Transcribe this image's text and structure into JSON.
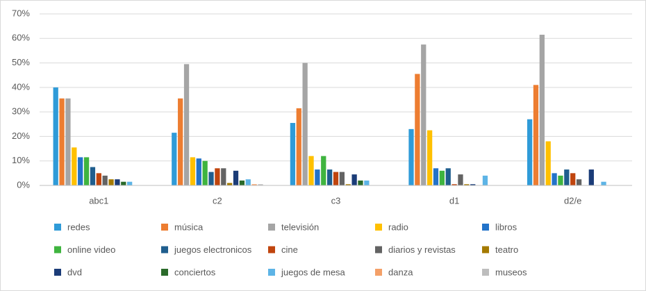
{
  "chart_data": {
    "type": "bar",
    "categories": [
      "abc1",
      "c2",
      "c3",
      "d1",
      "d2/e"
    ],
    "series": [
      {
        "name": "redes",
        "color": "#2F9BD8",
        "values": [
          40,
          21.5,
          25.5,
          23,
          27
        ]
      },
      {
        "name": "música",
        "color": "#ED7D31",
        "values": [
          35.5,
          35.5,
          31.5,
          45.5,
          41
        ]
      },
      {
        "name": "televisión",
        "color": "#A5A5A5",
        "values": [
          35.5,
          49.5,
          50,
          57.5,
          61.5
        ]
      },
      {
        "name": "radio",
        "color": "#FFC000",
        "values": [
          15.5,
          11.5,
          12,
          22.5,
          18
        ]
      },
      {
        "name": "libros",
        "color": "#2373C9",
        "values": [
          11.5,
          11,
          6.5,
          7,
          5
        ]
      },
      {
        "name": "online video",
        "color": "#3FB43F",
        "values": [
          11.5,
          10,
          12,
          6,
          4
        ]
      },
      {
        "name": "juegos electronicos",
        "color": "#1F5E8E",
        "values": [
          7.5,
          5.5,
          6.5,
          7,
          6.5
        ]
      },
      {
        "name": "cine",
        "color": "#C0450E",
        "values": [
          5,
          7,
          5.5,
          0.5,
          5
        ]
      },
      {
        "name": "diarios y revistas",
        "color": "#636363",
        "values": [
          4,
          7,
          5.5,
          4.5,
          2.5
        ]
      },
      {
        "name": "teatro",
        "color": "#A47A00",
        "values": [
          2.5,
          1,
          0.5,
          0.5,
          0
        ]
      },
      {
        "name": "dvd",
        "color": "#1B3C78",
        "values": [
          2.5,
          6,
          4.5,
          0.5,
          6.5
        ]
      },
      {
        "name": "conciertos",
        "color": "#2A6A2A",
        "values": [
          1.5,
          2,
          2,
          0,
          0
        ]
      },
      {
        "name": "juegos de mesa",
        "color": "#5DB4E6",
        "values": [
          1.5,
          2.5,
          2,
          4,
          1.5
        ]
      },
      {
        "name": "danza",
        "color": "#F4A068",
        "values": [
          0,
          0.5,
          0,
          0,
          0
        ]
      },
      {
        "name": "museos",
        "color": "#BDBDBD",
        "values": [
          0,
          0.5,
          0,
          0,
          0
        ]
      }
    ],
    "ylim": [
      0,
      70
    ],
    "yticks": [
      {
        "value": 0,
        "label": "0%"
      },
      {
        "value": 10,
        "label": "10%"
      },
      {
        "value": 20,
        "label": "20%"
      },
      {
        "value": 30,
        "label": "30%"
      },
      {
        "value": 40,
        "label": "40%"
      },
      {
        "value": 50,
        "label": "50%"
      },
      {
        "value": 60,
        "label": "60%"
      },
      {
        "value": 70,
        "label": "70%"
      }
    ],
    "grid": true,
    "legend": "bottom"
  }
}
